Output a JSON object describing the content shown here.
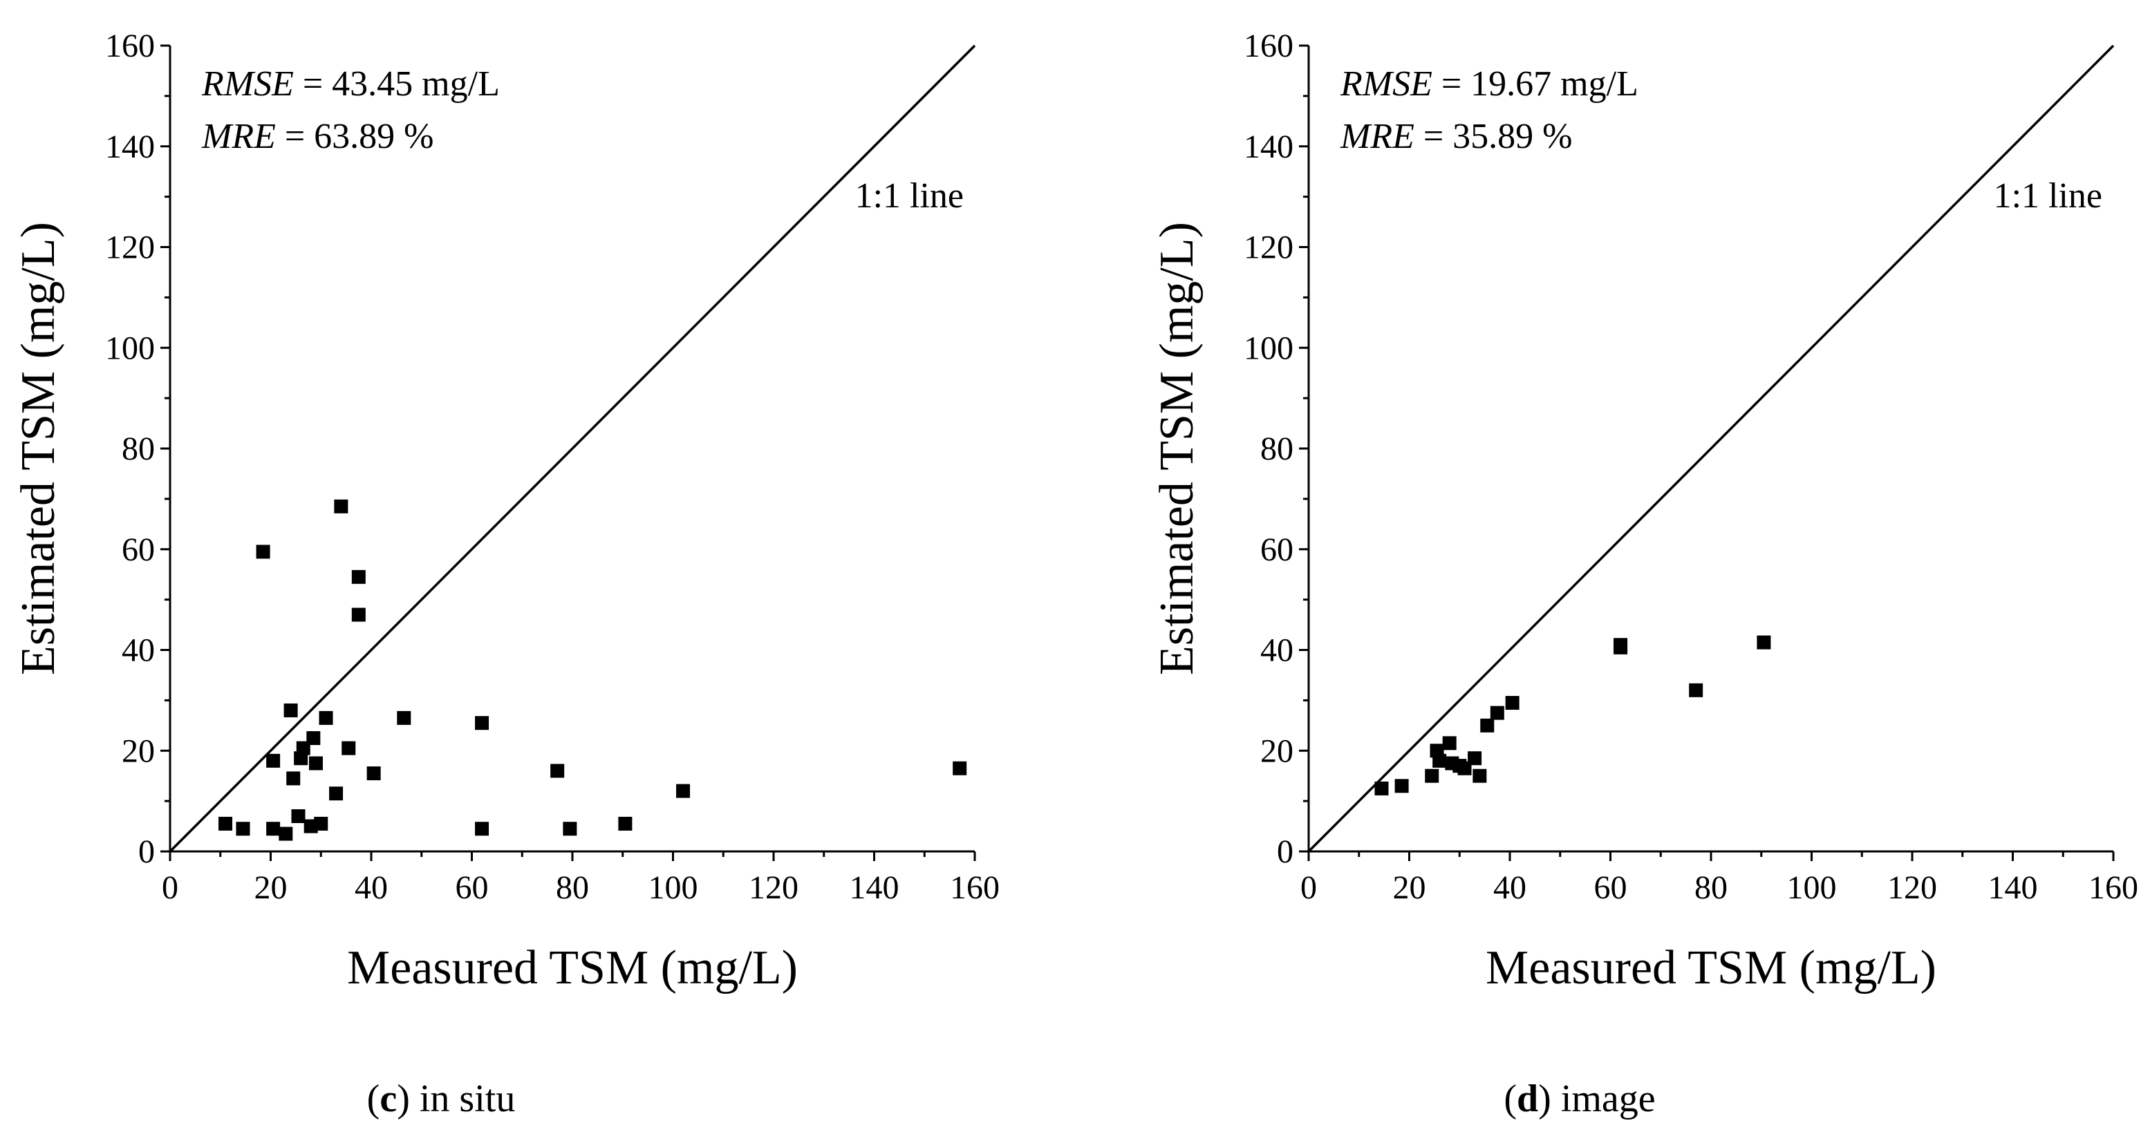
{
  "chart_data": [
    {
      "type": "scatter",
      "panel_id": "c",
      "caption_letter": "c",
      "caption_text": " in situ",
      "xlabel": "Measured TSM (mg/L)",
      "ylabel": "Estimated TSM (mg/L)",
      "xlim": [
        0,
        160
      ],
      "ylim": [
        0,
        160
      ],
      "xticks": [
        0,
        20,
        40,
        60,
        80,
        100,
        120,
        140,
        160
      ],
      "yticks": [
        0,
        20,
        40,
        60,
        80,
        100,
        120,
        140,
        160
      ],
      "stats": [
        {
          "name": "RMSE",
          "value": " = 43.45 mg/L"
        },
        {
          "name": "MRE",
          "value": " = 63.89 %"
        }
      ],
      "reference_line": {
        "label": "1:1 line",
        "from": [
          0,
          0
        ],
        "to": [
          160,
          160
        ]
      },
      "points": [
        {
          "x": 11,
          "y": 5.5
        },
        {
          "x": 14.5,
          "y": 4.5
        },
        {
          "x": 18.5,
          "y": 59.5
        },
        {
          "x": 20.5,
          "y": 18
        },
        {
          "x": 20.5,
          "y": 4.5
        },
        {
          "x": 23,
          "y": 3.5
        },
        {
          "x": 24,
          "y": 28
        },
        {
          "x": 24.5,
          "y": 14.5
        },
        {
          "x": 25.5,
          "y": 7
        },
        {
          "x": 26,
          "y": 18.5
        },
        {
          "x": 26.5,
          "y": 20.5
        },
        {
          "x": 28,
          "y": 5
        },
        {
          "x": 28.5,
          "y": 22.5
        },
        {
          "x": 29,
          "y": 17.5
        },
        {
          "x": 30,
          "y": 5.5
        },
        {
          "x": 31,
          "y": 26.5
        },
        {
          "x": 33,
          "y": 11.5
        },
        {
          "x": 34,
          "y": 68.5
        },
        {
          "x": 35.5,
          "y": 20.5
        },
        {
          "x": 37.5,
          "y": 54.5
        },
        {
          "x": 37.5,
          "y": 47
        },
        {
          "x": 40.5,
          "y": 15.5
        },
        {
          "x": 46.5,
          "y": 26.5
        },
        {
          "x": 62,
          "y": 25.5
        },
        {
          "x": 62,
          "y": 4.5
        },
        {
          "x": 77,
          "y": 16
        },
        {
          "x": 79.5,
          "y": 4.5
        },
        {
          "x": 90.5,
          "y": 5.5
        },
        {
          "x": 102,
          "y": 12
        },
        {
          "x": 157,
          "y": 16.5
        }
      ]
    },
    {
      "type": "scatter",
      "panel_id": "d",
      "caption_letter": "d",
      "caption_text": " image",
      "xlabel": "Measured TSM (mg/L)",
      "ylabel": "Estimated TSM (mg/L)",
      "xlim": [
        0,
        160
      ],
      "ylim": [
        0,
        160
      ],
      "xticks": [
        0,
        20,
        40,
        60,
        80,
        100,
        120,
        140,
        160
      ],
      "yticks": [
        0,
        20,
        40,
        60,
        80,
        100,
        120,
        140,
        160
      ],
      "stats": [
        {
          "name": "RMSE",
          "value": " = 19.67 mg/L"
        },
        {
          "name": "MRE",
          "value": " = 35.89 %"
        }
      ],
      "reference_line": {
        "label": "1:1 line",
        "from": [
          0,
          0
        ],
        "to": [
          160,
          160
        ]
      },
      "points": [
        {
          "x": 14.5,
          "y": 12.5
        },
        {
          "x": 18.5,
          "y": 13
        },
        {
          "x": 24.5,
          "y": 15
        },
        {
          "x": 25.5,
          "y": 20
        },
        {
          "x": 26,
          "y": 18
        },
        {
          "x": 28,
          "y": 21.5
        },
        {
          "x": 28.5,
          "y": 17.5
        },
        {
          "x": 30,
          "y": 17
        },
        {
          "x": 31,
          "y": 16.5
        },
        {
          "x": 33,
          "y": 18.5
        },
        {
          "x": 34,
          "y": 15
        },
        {
          "x": 35.5,
          "y": 25
        },
        {
          "x": 37.5,
          "y": 27.5
        },
        {
          "x": 40.5,
          "y": 29.5
        },
        {
          "x": 62,
          "y": 41
        },
        {
          "x": 62,
          "y": 40.5
        },
        {
          "x": 77,
          "y": 32
        },
        {
          "x": 90.5,
          "y": 41.5
        }
      ]
    }
  ]
}
